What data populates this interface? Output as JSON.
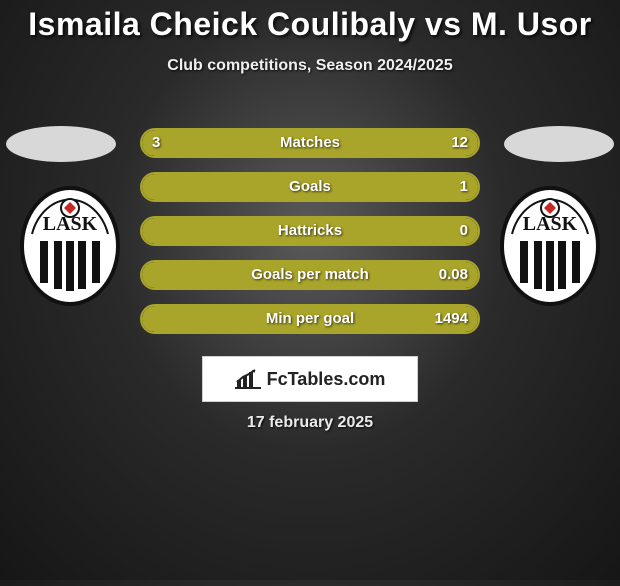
{
  "title": "Ismaila Cheick Coulibaly vs M. Usor",
  "subtitle": "Club competitions, Season 2024/2025",
  "date": "17 february 2025",
  "logo_text": "FcTables.com",
  "club_name": "LASK",
  "colors": {
    "title_color": "#ffffff",
    "subtitle_color": "#f0f0f0",
    "bar_border": "#a9a42a",
    "bar_fill": "#a9a42a",
    "bar_text": "#ffffff",
    "background_center": "#5a5a5a",
    "background_edge": "#161616",
    "logo_bg": "#ffffff",
    "logo_text": "#222222",
    "ellipse": "#d8d8d8"
  },
  "bars": [
    {
      "label": "Matches",
      "left_value": "3",
      "right_value": "12",
      "left_pct": 20,
      "right_pct": 80
    },
    {
      "label": "Goals",
      "left_value": "",
      "right_value": "1",
      "left_pct": 0,
      "right_pct": 100
    },
    {
      "label": "Hattricks",
      "left_value": "",
      "right_value": "0",
      "left_pct": 0,
      "right_pct": 100
    },
    {
      "label": "Goals per match",
      "left_value": "",
      "right_value": "0.08",
      "left_pct": 0,
      "right_pct": 100
    },
    {
      "label": "Min per goal",
      "left_value": "",
      "right_value": "1494",
      "left_pct": 0,
      "right_pct": 100
    }
  ],
  "typography": {
    "title_fontsize": 32,
    "subtitle_fontsize": 16,
    "bar_label_fontsize": 15,
    "date_fontsize": 16
  }
}
